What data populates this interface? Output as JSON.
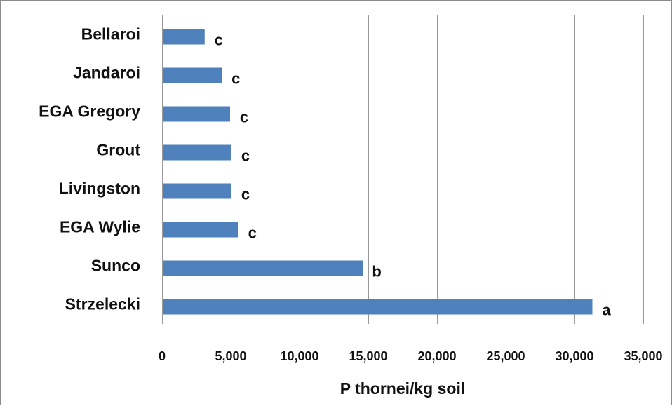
{
  "chart_data": {
    "type": "bar",
    "orientation": "horizontal",
    "categories": [
      "Bellaroi",
      "Jandaroi",
      "EGA Gregory",
      "Grout",
      "Livingston",
      "EGA Wylie",
      "Sunco",
      "Strzelecki"
    ],
    "values": [
      3100,
      4350,
      4950,
      5050,
      5050,
      5550,
      14600,
      31300
    ],
    "significance_letters": [
      "c",
      "c",
      "c",
      "c",
      "c",
      "c",
      "b",
      "a"
    ],
    "xlabel": "P thornei/kg soil",
    "ylabel": "",
    "xlim": [
      0,
      35000
    ],
    "x_ticks": [
      0,
      5000,
      10000,
      15000,
      20000,
      25000,
      30000,
      35000
    ],
    "x_tick_labels": [
      "0",
      "5,000",
      "10,000",
      "15,000",
      "20,000",
      "25,000",
      "30,000",
      "35,000"
    ],
    "grid": "vertical major gridlines",
    "legend": "none",
    "bar_color": "#4f81bd"
  }
}
